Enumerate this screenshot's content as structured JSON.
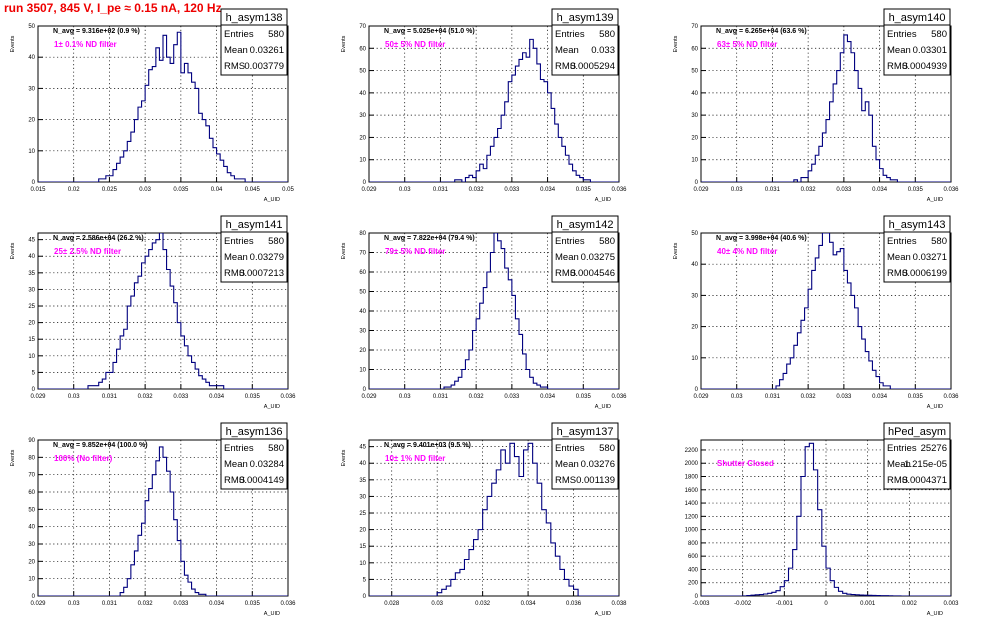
{
  "page": {
    "title": "run 3507,   845 V, I_pe ≈ 0.15 nA, 120 Hz"
  },
  "colors": {
    "line": "#00007f",
    "grid": "#000000",
    "annotation": "#ff00ff",
    "title": "#ee0000"
  },
  "chart_data": [
    {
      "type": "bar",
      "title": "h_asym138",
      "xlabel": "A_UID",
      "ylabel": "Events",
      "navg": "N_avg = 9.316e+02 (0.9 %)",
      "annotation": "1± 0.1% ND filter",
      "stats": {
        "entries_label": "Entries",
        "entries": "580",
        "mean_label": "Mean",
        "mean": "0.03261",
        "rms_label": "RMS",
        "rms": "0.003779"
      },
      "xlim": [
        0.015,
        0.05
      ],
      "ylim": [
        0,
        50
      ],
      "xticks": [
        "0.015",
        "0.02",
        "0.025",
        "0.03",
        "0.035",
        "0.04",
        "0.045",
        "0.05"
      ],
      "yticks": [
        "0",
        "10",
        "20",
        "30",
        "40",
        "50"
      ],
      "bin_start": 0.015,
      "bin_width": 0.0005,
      "values": [
        0,
        0,
        0,
        0,
        0,
        0,
        0,
        0,
        0,
        0,
        0,
        0,
        0,
        0,
        0,
        0,
        0,
        1,
        1,
        2,
        2,
        4,
        6,
        8,
        10,
        13,
        16,
        20,
        24,
        26,
        31,
        36,
        37,
        43,
        39,
        47,
        40,
        38,
        44,
        48,
        35,
        38,
        35,
        32,
        30,
        22,
        20,
        18,
        14,
        11,
        9,
        7,
        5,
        3,
        2,
        1,
        1,
        1,
        0,
        0,
        0,
        0,
        0,
        0,
        0,
        0,
        0,
        0,
        0,
        0
      ]
    },
    {
      "type": "bar",
      "title": "h_asym139",
      "xlabel": "A_UID",
      "ylabel": "Events",
      "navg": "N_avg = 5.025e+04 (51.0 %)",
      "annotation": "50± 5% ND filter",
      "stats": {
        "entries_label": "Entries",
        "entries": "580",
        "mean_label": "Mean",
        "mean": "0.033",
        "rms_label": "RMS",
        "rms": "0.0005294"
      },
      "xlim": [
        0.029,
        0.036
      ],
      "ylim": [
        0,
        70
      ],
      "xticks": [
        "0.029",
        "0.03",
        "0.031",
        "0.032",
        "0.033",
        "0.034",
        "0.035",
        "0.036"
      ],
      "yticks": [
        "0",
        "10",
        "20",
        "30",
        "40",
        "50",
        "60",
        "70"
      ],
      "bin_start": 0.029,
      "bin_width": 0.0001,
      "values": [
        0,
        0,
        0,
        0,
        0,
        0,
        0,
        0,
        0,
        0,
        0,
        0,
        0,
        0,
        0,
        0,
        0,
        0,
        0,
        0,
        0,
        0,
        0,
        0,
        1,
        1,
        0,
        2,
        3,
        2,
        5,
        8,
        6,
        12,
        16,
        20,
        24,
        30,
        36,
        45,
        48,
        52,
        55,
        58,
        56,
        64,
        60,
        53,
        46,
        45,
        40,
        33,
        26,
        20,
        16,
        12,
        8,
        5,
        3,
        2,
        1,
        1,
        0,
        0,
        0,
        0,
        0,
        0,
        0,
        0
      ]
    },
    {
      "type": "bar",
      "title": "h_asym140",
      "xlabel": "A_UID",
      "ylabel": "Events",
      "navg": "N_avg = 6.265e+04 (63.6 %)",
      "annotation": "63± 5% ND filter",
      "stats": {
        "entries_label": "Entries",
        "entries": "580",
        "mean_label": "Mean",
        "mean": "0.03301",
        "rms_label": "RMS",
        "rms": "0.0004939"
      },
      "xlim": [
        0.029,
        0.036
      ],
      "ylim": [
        0,
        70
      ],
      "xticks": [
        "0.029",
        "0.03",
        "0.031",
        "0.032",
        "0.033",
        "0.034",
        "0.035",
        "0.036"
      ],
      "yticks": [
        "0",
        "10",
        "20",
        "30",
        "40",
        "50",
        "60",
        "70"
      ],
      "bin_start": 0.029,
      "bin_width": 0.0001,
      "values": [
        0,
        0,
        0,
        0,
        0,
        0,
        0,
        0,
        0,
        0,
        0,
        0,
        0,
        0,
        0,
        0,
        0,
        0,
        0,
        0,
        0,
        0,
        0,
        0,
        0,
        0,
        1,
        0,
        2,
        2,
        5,
        8,
        12,
        16,
        22,
        28,
        36,
        44,
        50,
        58,
        66,
        63,
        58,
        50,
        42,
        32,
        36,
        30,
        16,
        10,
        6,
        3,
        2,
        1,
        1,
        0,
        0,
        0,
        0,
        0,
        0,
        0,
        0,
        0,
        0,
        0,
        0,
        0,
        0,
        0
      ]
    },
    {
      "type": "bar",
      "title": "h_asym141",
      "xlabel": "A_UID",
      "ylabel": "Events",
      "navg": "N_avg = 2.586e+04 (26.2 %)",
      "annotation": "25± 2.5% ND filter",
      "stats": {
        "entries_label": "Entries",
        "entries": "580",
        "mean_label": "Mean",
        "mean": "0.03279",
        "rms_label": "RMS",
        "rms": "0.0007213"
      },
      "xlim": [
        0.029,
        0.036
      ],
      "ylim": [
        0,
        47
      ],
      "xticks": [
        "0.029",
        "0.03",
        "0.031",
        "0.032",
        "0.033",
        "0.034",
        "0.035",
        "0.036"
      ],
      "yticks": [
        "0",
        "5",
        "10",
        "15",
        "20",
        "25",
        "30",
        "35",
        "40",
        "45"
      ],
      "bin_start": 0.029,
      "bin_width": 0.0001,
      "values": [
        0,
        0,
        0,
        0,
        0,
        0,
        0,
        0,
        0,
        0,
        0,
        0,
        0,
        0,
        1,
        1,
        1,
        2,
        3,
        5,
        5,
        8,
        12,
        16,
        18,
        25,
        28,
        32,
        34,
        38,
        40,
        42,
        44,
        45,
        47,
        42,
        36,
        31,
        26,
        20,
        16,
        13,
        10,
        8,
        6,
        4,
        3,
        2,
        1,
        1,
        1,
        1,
        0,
        0,
        0,
        0,
        0,
        0,
        0,
        0,
        0,
        0,
        0,
        0,
        0,
        0,
        0,
        0,
        0,
        0
      ]
    },
    {
      "type": "bar",
      "title": "h_asym142",
      "xlabel": "A_UID",
      "ylabel": "Events",
      "navg": "N_avg = 7.822e+04 (79.4 %)",
      "annotation": "79± 5% ND filter",
      "stats": {
        "entries_label": "Entries",
        "entries": "580",
        "mean_label": "Mean",
        "mean": "0.03275",
        "rms_label": "RMS",
        "rms": "0.0004546"
      },
      "xlim": [
        0.029,
        0.036
      ],
      "ylim": [
        0,
        80
      ],
      "xticks": [
        "0.029",
        "0.03",
        "0.031",
        "0.032",
        "0.033",
        "0.034",
        "0.035",
        "0.036"
      ],
      "yticks": [
        "0",
        "10",
        "20",
        "30",
        "40",
        "50",
        "60",
        "70",
        "80"
      ],
      "bin_start": 0.029,
      "bin_width": 0.0001,
      "values": [
        0,
        0,
        0,
        0,
        0,
        0,
        0,
        0,
        0,
        0,
        0,
        0,
        0,
        0,
        0,
        0,
        0,
        0,
        0,
        0,
        0,
        1,
        1,
        2,
        4,
        6,
        10,
        15,
        20,
        30,
        36,
        44,
        52,
        60,
        70,
        80,
        76,
        72,
        62,
        56,
        48,
        36,
        28,
        18,
        10,
        6,
        3,
        2,
        1,
        1,
        0,
        0,
        0,
        0,
        0,
        0,
        0,
        0,
        0,
        0,
        0,
        0,
        0,
        0,
        0,
        0,
        0,
        0,
        0,
        0
      ]
    },
    {
      "type": "bar",
      "title": "h_asym143",
      "xlabel": "A_UID",
      "ylabel": "Events",
      "navg": "N_avg = 3.998e+04 (40.6 %)",
      "annotation": "40± 4% ND filter",
      "stats": {
        "entries_label": "Entries",
        "entries": "580",
        "mean_label": "Mean",
        "mean": "0.03271",
        "rms_label": "RMS",
        "rms": "0.0006199"
      },
      "xlim": [
        0.029,
        0.036
      ],
      "ylim": [
        0,
        50
      ],
      "xticks": [
        "0.029",
        "0.03",
        "0.031",
        "0.032",
        "0.033",
        "0.034",
        "0.035",
        "0.036"
      ],
      "yticks": [
        "0",
        "10",
        "20",
        "30",
        "40",
        "50"
      ],
      "bin_start": 0.029,
      "bin_width": 0.0001,
      "values": [
        0,
        0,
        0,
        0,
        0,
        0,
        0,
        0,
        0,
        0,
        0,
        0,
        0,
        0,
        0,
        0,
        0,
        0,
        0,
        0,
        0,
        1,
        3,
        5,
        8,
        10,
        14,
        18,
        22,
        26,
        32,
        38,
        42,
        46,
        50,
        50,
        47,
        43,
        44,
        45,
        38,
        34,
        30,
        26,
        20,
        16,
        12,
        9,
        6,
        4,
        2,
        1,
        1,
        0,
        0,
        0,
        0,
        0,
        0,
        0,
        0,
        0,
        0,
        0,
        0,
        0,
        0,
        0,
        0,
        0
      ]
    },
    {
      "type": "bar",
      "title": "h_asym136",
      "xlabel": "A_UID",
      "ylabel": "Events",
      "navg": "N_avg = 9.852e+04 (100.0 %)",
      "annotation": "100% (No filter)",
      "stats": {
        "entries_label": "Entries",
        "entries": "580",
        "mean_label": "Mean",
        "mean": "0.03284",
        "rms_label": "RMS",
        "rms": "0.0004149"
      },
      "xlim": [
        0.029,
        0.036
      ],
      "ylim": [
        0,
        90
      ],
      "xticks": [
        "0.029",
        "0.03",
        "0.031",
        "0.032",
        "0.033",
        "0.034",
        "0.035",
        "0.036"
      ],
      "yticks": [
        "0",
        "10",
        "20",
        "30",
        "40",
        "50",
        "60",
        "70",
        "80",
        "90"
      ],
      "bin_start": 0.029,
      "bin_width": 0.0001,
      "values": [
        0,
        0,
        0,
        0,
        0,
        0,
        0,
        0,
        0,
        0,
        0,
        0,
        0,
        0,
        0,
        0,
        0,
        0,
        0,
        0,
        0,
        0,
        0,
        2,
        5,
        10,
        18,
        26,
        35,
        42,
        55,
        62,
        70,
        78,
        86,
        80,
        72,
        60,
        44,
        32,
        20,
        12,
        8,
        4,
        2,
        1,
        1,
        0,
        0,
        0,
        0,
        0,
        0,
        0,
        0,
        0,
        0,
        0,
        0,
        0,
        0,
        0,
        0,
        0,
        0,
        0,
        0,
        0,
        0,
        0
      ]
    },
    {
      "type": "bar",
      "title": "h_asym137",
      "xlabel": "A_UID",
      "ylabel": "Events",
      "navg": "N_avg = 9.401e+03 (9.5 %)",
      "annotation": "10± 1% ND filter",
      "stats": {
        "entries_label": "Entries",
        "entries": "580",
        "mean_label": "Mean",
        "mean": "0.03276",
        "rms_label": "RMS",
        "rms": "0.001139"
      },
      "xlim": [
        0.027,
        0.038
      ],
      "ylim": [
        0,
        47
      ],
      "xticks": [
        "0.028",
        "0.03",
        "0.032",
        "0.034",
        "0.036",
        "0.038"
      ],
      "yticks": [
        "0",
        "5",
        "10",
        "15",
        "20",
        "25",
        "30",
        "35",
        "40",
        "45"
      ],
      "bin_start": 0.027,
      "bin_width": 0.0002,
      "values": [
        0,
        0,
        0,
        0,
        0,
        0,
        0,
        0,
        0,
        0,
        0,
        0,
        0,
        0,
        0,
        1,
        2,
        3,
        5,
        7,
        8,
        11,
        14,
        17,
        20,
        26,
        30,
        34,
        38,
        44,
        40,
        46,
        42,
        36,
        44,
        46,
        40,
        34,
        26,
        22,
        16,
        12,
        8,
        5,
        3,
        2,
        0,
        0,
        0,
        0,
        0,
        0,
        0,
        0,
        0,
        0
      ]
    },
    {
      "type": "bar",
      "title": "hPed_asym",
      "xlabel": "A_UID",
      "ylabel": "",
      "navg": "",
      "annotation": "Shutter Closed",
      "stats": {
        "entries_label": "Entries",
        "entries": "25276",
        "mean_label": "Mean",
        "mean": "-1.215e-05",
        "rms_label": "RMS",
        "rms": "0.0004371"
      },
      "xlim": [
        -0.003,
        0.003
      ],
      "ylim": [
        0,
        2350
      ],
      "xticks": [
        "-0.003",
        "-0.002",
        "-0.001",
        "0",
        "0.001",
        "0.002",
        "0.003"
      ],
      "yticks": [
        "0",
        "200",
        "400",
        "600",
        "800",
        "1000",
        "1200",
        "1400",
        "1600",
        "1800",
        "2000",
        "2200"
      ],
      "bin_start": -0.003,
      "bin_width": 0.0001,
      "values": [
        0,
        0,
        0,
        0,
        0,
        0,
        0,
        0,
        0,
        0,
        2,
        6,
        12,
        18,
        22,
        30,
        40,
        55,
        80,
        140,
        230,
        420,
        700,
        1200,
        1800,
        2250,
        2300,
        1900,
        1300,
        750,
        420,
        230,
        130,
        70,
        40,
        28,
        22,
        18,
        14,
        12,
        10,
        8,
        6,
        5,
        4,
        3,
        2,
        1,
        0,
        0,
        0,
        0,
        0,
        0,
        0,
        0,
        0,
        0,
        0,
        0
      ]
    }
  ]
}
